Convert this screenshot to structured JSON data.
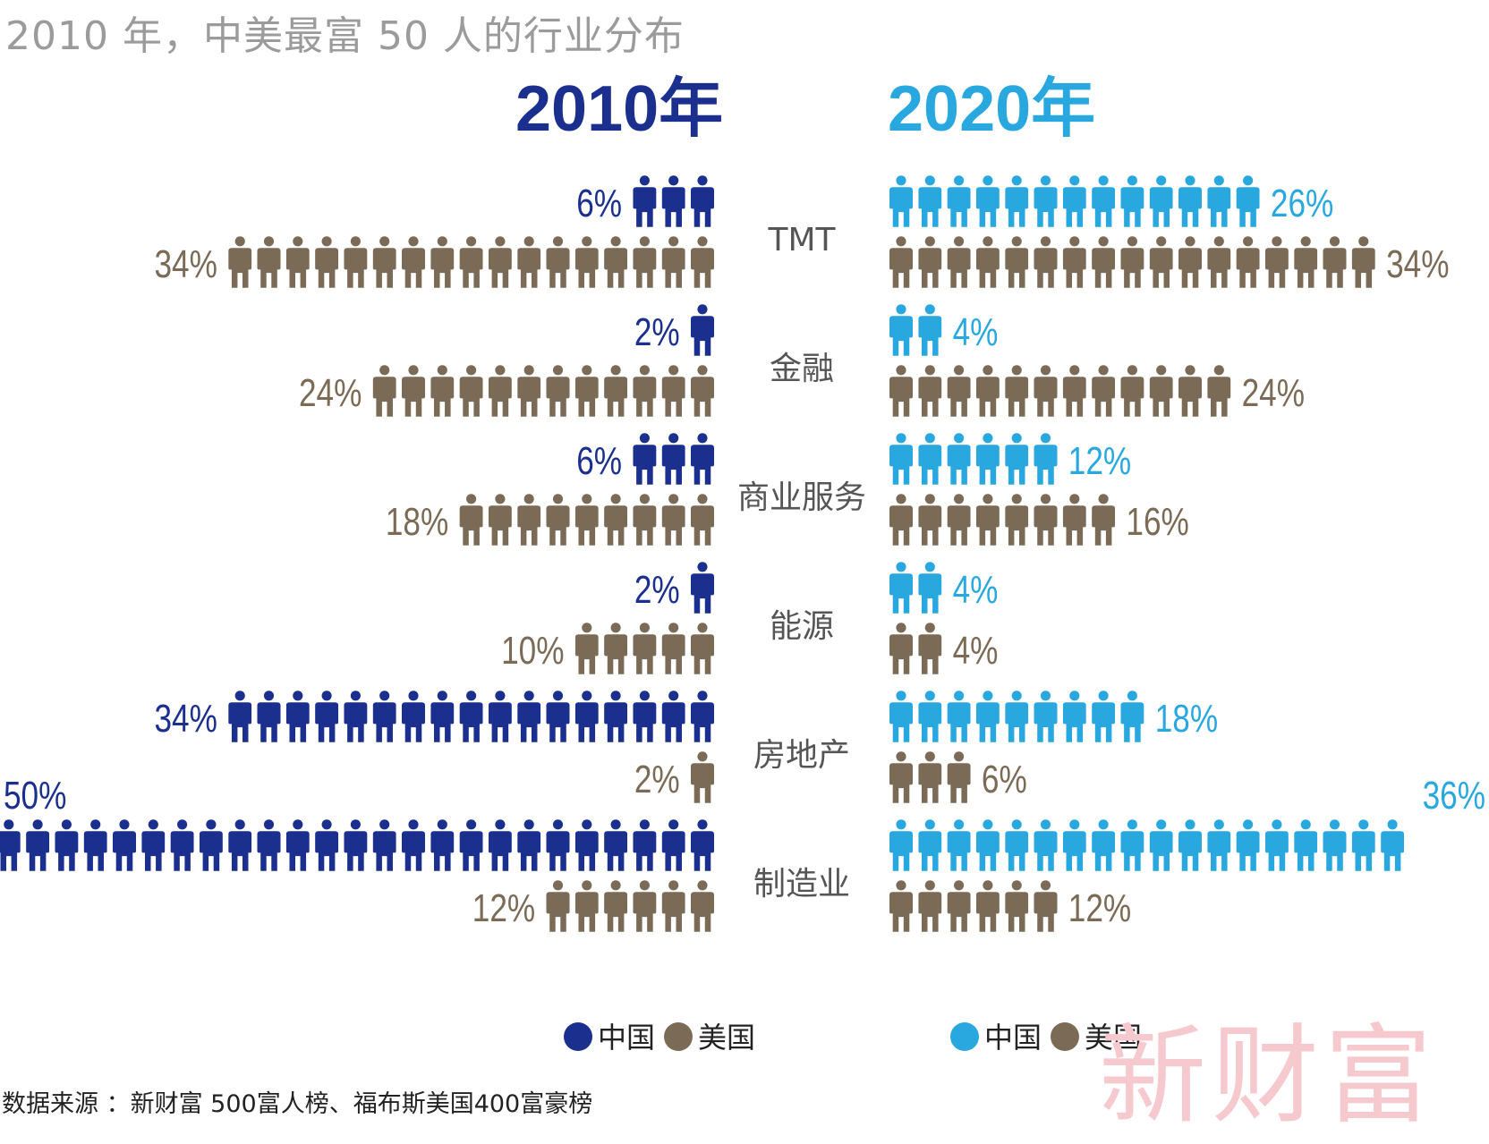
{
  "title": "2010 年，中美最富 50 人的行业分布",
  "source": "数据来源 ：新财富 500富人榜、福布斯美国400富豪榜",
  "watermark": "新财富",
  "colors": {
    "china_2010": "#1b2f8e",
    "china_2020": "#29a8e0",
    "us": "#7b6a55",
    "category_text": "#555555",
    "title_text": "#9b9b9b"
  },
  "chart_data": {
    "type": "bar",
    "unit": "%",
    "periods": [
      {
        "label": "2010年",
        "year": 2010
      },
      {
        "label": "2020年",
        "year": 2020
      }
    ],
    "categories": [
      "TMT",
      "金融",
      "商业服务",
      "能源",
      "房地产",
      "制造业"
    ],
    "series": [
      {
        "name": "中国",
        "period": 2010,
        "values": [
          6,
          2,
          6,
          2,
          34,
          50
        ]
      },
      {
        "name": "美国",
        "period": 2010,
        "values": [
          34,
          24,
          18,
          10,
          2,
          12
        ]
      },
      {
        "name": "中国",
        "period": 2020,
        "values": [
          26,
          4,
          12,
          4,
          18,
          36
        ]
      },
      {
        "name": "美国",
        "period": 2020,
        "values": [
          34,
          24,
          16,
          4,
          6,
          12
        ]
      }
    ],
    "legend": {
      "left": [
        "中国",
        "美国"
      ],
      "right": [
        "中国",
        "美国"
      ],
      "placement": "bottom"
    },
    "icon": "person-icon",
    "percent_per_icon": 2
  }
}
